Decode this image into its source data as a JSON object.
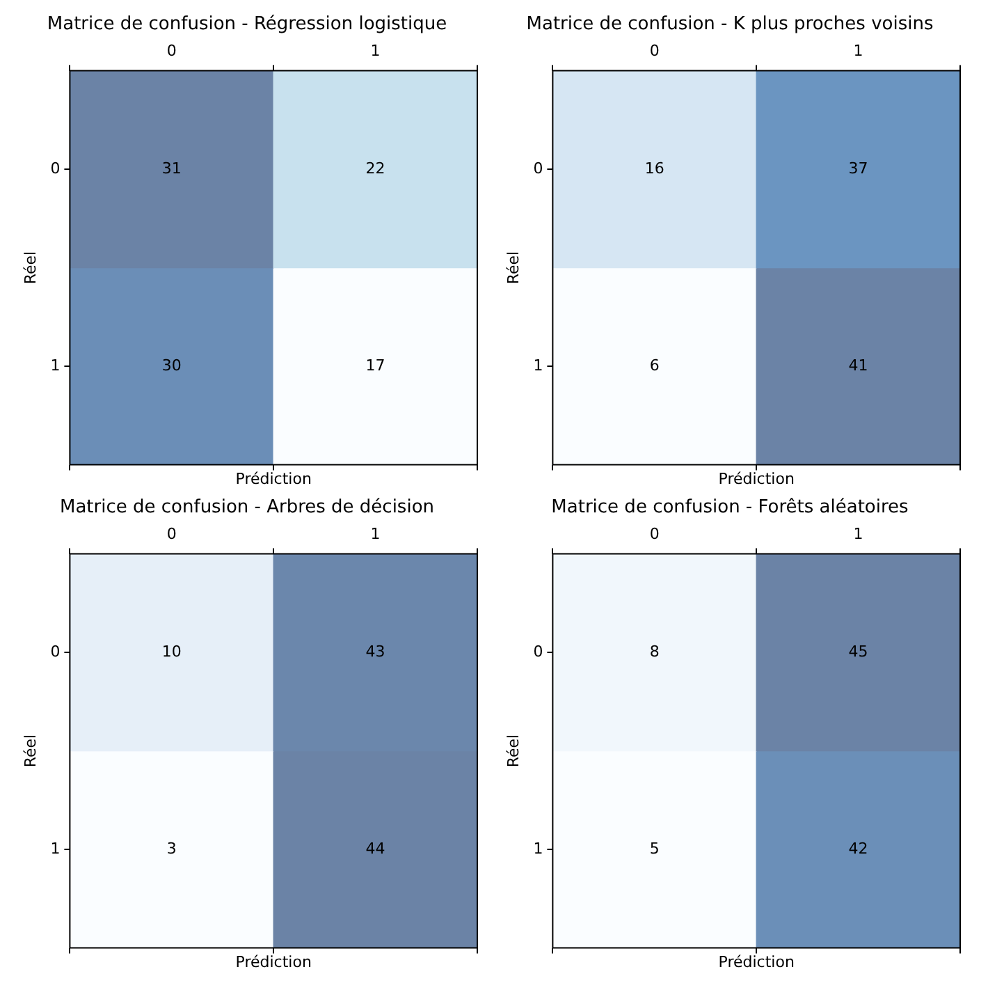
{
  "chart_data": [
    {
      "type": "heatmap",
      "title": "Matrice de confusion - Régression logistique",
      "xlabel": "Prédiction",
      "ylabel": "Réel",
      "categories": [
        "0",
        "1"
      ],
      "y_categories": [
        "0",
        "1"
      ],
      "cells": [
        [
          31,
          22
        ],
        [
          30,
          17
        ]
      ],
      "data_labels": true
    },
    {
      "type": "heatmap",
      "title": "Matrice de confusion - K plus proches voisins",
      "xlabel": "Prédiction",
      "ylabel": "Réel",
      "categories": [
        "0",
        "1"
      ],
      "y_categories": [
        "0",
        "1"
      ],
      "cells": [
        [
          16,
          37
        ],
        [
          6,
          41
        ]
      ],
      "data_labels": true
    },
    {
      "type": "heatmap",
      "title": "Matrice de confusion - Arbres de décision",
      "xlabel": "Prédiction",
      "ylabel": "Réel",
      "categories": [
        "0",
        "1"
      ],
      "y_categories": [
        "0",
        "1"
      ],
      "cells": [
        [
          10,
          43
        ],
        [
          3,
          44
        ]
      ],
      "data_labels": true
    },
    {
      "type": "heatmap",
      "title": "Matrice de confusion - Forêts aléatoires",
      "xlabel": "Prédiction",
      "ylabel": "Réel",
      "categories": [
        "0",
        "1"
      ],
      "y_categories": [
        "0",
        "1"
      ],
      "cells": [
        [
          8,
          45
        ],
        [
          5,
          42
        ]
      ],
      "data_labels": true
    }
  ]
}
